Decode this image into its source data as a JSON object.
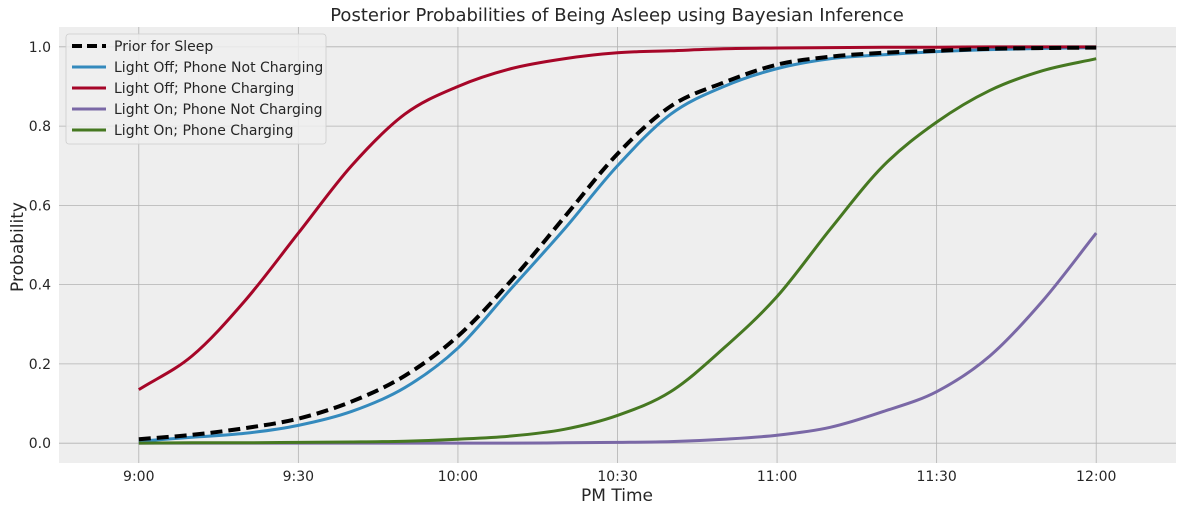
{
  "chart_data": {
    "type": "line",
    "title": "Posterior Probabilities of Being Asleep using Bayesian Inference",
    "xlabel": "PM Time",
    "ylabel": "Probability",
    "xlim": [
      -15,
      195
    ],
    "ylim": [
      -0.05,
      1.05
    ],
    "x_ticks": [
      {
        "value": 0,
        "label": "9:00"
      },
      {
        "value": 30,
        "label": "9:30"
      },
      {
        "value": 60,
        "label": "10:00"
      },
      {
        "value": 90,
        "label": "10:30"
      },
      {
        "value": 120,
        "label": "11:00"
      },
      {
        "value": 150,
        "label": "11:30"
      },
      {
        "value": 180,
        "label": "12:00"
      }
    ],
    "y_ticks": [
      {
        "value": 0.0,
        "label": "0.0"
      },
      {
        "value": 0.2,
        "label": "0.2"
      },
      {
        "value": 0.4,
        "label": "0.4"
      },
      {
        "value": 0.6,
        "label": "0.6"
      },
      {
        "value": 0.8,
        "label": "0.8"
      },
      {
        "value": 1.0,
        "label": "1.0"
      }
    ],
    "grid": true,
    "legend_position": "top-left",
    "x": [
      0,
      10,
      20,
      30,
      40,
      50,
      60,
      70,
      80,
      90,
      100,
      110,
      120,
      130,
      140,
      150,
      160,
      170,
      180
    ],
    "series": [
      {
        "name": "Prior for Sleep",
        "color": "#000000",
        "dashed": true,
        "values": [
          0.01,
          0.021,
          0.038,
          0.062,
          0.105,
          0.17,
          0.27,
          0.41,
          0.57,
          0.73,
          0.85,
          0.91,
          0.955,
          0.975,
          0.985,
          0.99,
          0.995,
          0.997,
          0.998
        ]
      },
      {
        "name": "Light Off; Phone Not Charging",
        "color": "#348ABD",
        "dashed": false,
        "values": [
          0.005,
          0.015,
          0.025,
          0.045,
          0.08,
          0.14,
          0.24,
          0.39,
          0.54,
          0.7,
          0.83,
          0.9,
          0.945,
          0.97,
          0.98,
          0.988,
          0.993,
          0.996,
          0.998
        ]
      },
      {
        "name": "Light Off; Phone Charging",
        "color": "#A60628",
        "dashed": false,
        "values": [
          0.135,
          0.22,
          0.36,
          0.53,
          0.7,
          0.83,
          0.9,
          0.945,
          0.97,
          0.985,
          0.99,
          0.995,
          0.997,
          0.998,
          0.999,
          0.999,
          1.0,
          1.0,
          1.0
        ]
      },
      {
        "name": "Light On; Phone Not Charging",
        "color": "#7A68A6",
        "dashed": false,
        "values": [
          0.0,
          0.0,
          0.0,
          0.0,
          0.0,
          0.0,
          0.0,
          0.0,
          0.001,
          0.002,
          0.004,
          0.01,
          0.02,
          0.04,
          0.08,
          0.13,
          0.22,
          0.36,
          0.53
        ]
      },
      {
        "name": "Light On; Phone Charging",
        "color": "#467821",
        "dashed": false,
        "values": [
          0.0,
          0.001,
          0.001,
          0.002,
          0.003,
          0.005,
          0.01,
          0.018,
          0.035,
          0.07,
          0.13,
          0.24,
          0.37,
          0.54,
          0.7,
          0.81,
          0.89,
          0.94,
          0.97
        ]
      }
    ]
  }
}
